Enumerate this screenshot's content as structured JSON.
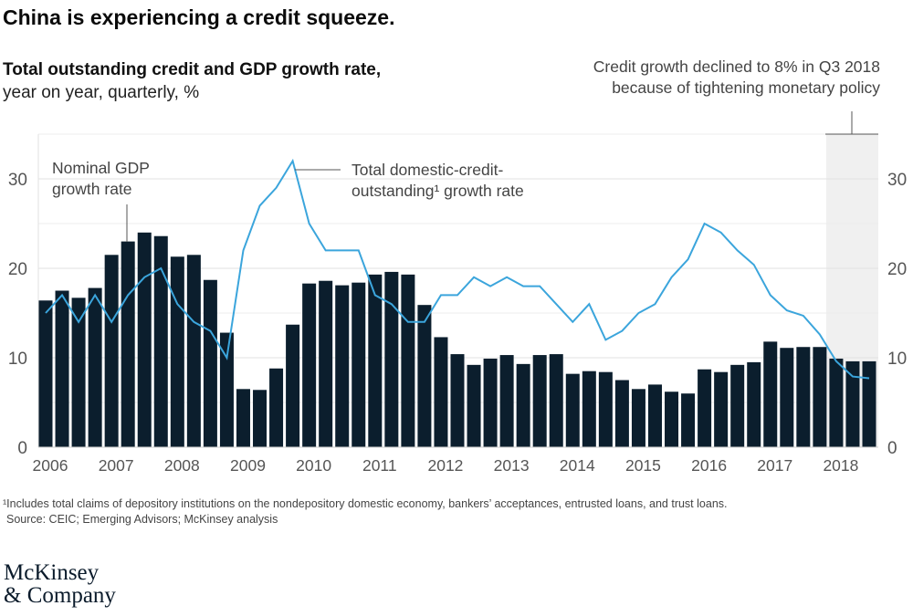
{
  "title": "China is experiencing a credit squeeze.",
  "subtitle_bold": "Total outstanding credit and GDP growth rate,",
  "subtitle": "year on year, quarterly, %",
  "callout": [
    "Credit growth declined to 8% in Q3 2018",
    "because of tightening monetary policy"
  ],
  "footnote": "¹Includes total claims of depository institutions on the nondepository domestic economy, bankers’ acceptances, entrusted loans, and trust loans.",
  "source": "Source: CEIC; Emerging Advisors; McKinsey analysis",
  "logo": [
    "McKinsey",
    "& Company"
  ],
  "chart_data": {
    "type": "bar+line",
    "x_tick_labels": [
      "2006",
      "2007",
      "2008",
      "2009",
      "2010",
      "2011",
      "2012",
      "2013",
      "2014",
      "2015",
      "2016",
      "2017",
      "2018"
    ],
    "y_ticks": [
      0,
      10,
      20,
      30
    ],
    "ylim": [
      0,
      35
    ],
    "grid": true,
    "highlight_period": "2018 Q1–Q3",
    "colors": {
      "bars": "#0b1e2d",
      "line": "#3ba5dc",
      "highlight": "#f0f0f0"
    },
    "series": [
      {
        "name": "Nominal GDP growth rate",
        "label_lines": [
          "Nominal GDP",
          "growth rate"
        ],
        "type": "bar",
        "values": [
          16.4,
          17.5,
          16.7,
          17.8,
          21.5,
          23.0,
          24.0,
          23.6,
          21.3,
          21.5,
          18.7,
          12.8,
          6.5,
          6.4,
          8.8,
          13.7,
          18.3,
          18.6,
          18.1,
          18.4,
          19.3,
          19.6,
          19.3,
          15.9,
          12.3,
          10.4,
          9.2,
          9.9,
          10.3,
          9.3,
          10.3,
          10.4,
          8.2,
          8.5,
          8.4,
          7.5,
          6.5,
          7.0,
          6.2,
          6.0,
          8.7,
          8.4,
          9.2,
          9.5,
          11.8,
          11.1,
          11.2,
          11.2,
          9.9,
          9.6,
          9.6
        ]
      },
      {
        "name": "Total domestic-credit-outstanding¹ growth rate",
        "label_lines": [
          "Total domestic-credit-",
          "outstanding¹ growth rate"
        ],
        "type": "line",
        "values": [
          15,
          17,
          14,
          17,
          14,
          17,
          19,
          20,
          16,
          14,
          13,
          10,
          22,
          27,
          29,
          32,
          25,
          22,
          22,
          22,
          17,
          16,
          14,
          14,
          17,
          17,
          19,
          18,
          19,
          18,
          18,
          16,
          14,
          16,
          12,
          13,
          15,
          16,
          19,
          21,
          25,
          24,
          22,
          20.4,
          17,
          15.3,
          14.7,
          12.6,
          9.6,
          7.9,
          7.7
        ]
      }
    ]
  }
}
